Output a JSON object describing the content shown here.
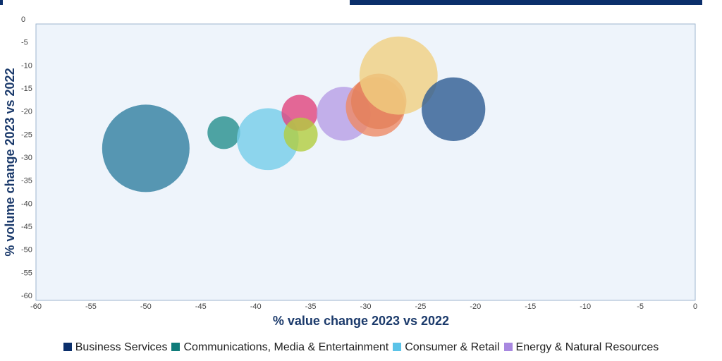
{
  "chart_data": {
    "type": "scatter",
    "subtype": "bubble",
    "xlabel": "% value change 2023 vs 2022",
    "ylabel": "% volume change 2023 vs 2022",
    "xlim": [
      -60,
      0
    ],
    "ylim": [
      -60,
      0
    ],
    "x_ticks": [
      -60,
      -55,
      -50,
      -45,
      -40,
      -35,
      -30,
      -25,
      -20,
      -15,
      -10,
      -5,
      0
    ],
    "y_ticks": [
      0,
      -5,
      -10,
      -15,
      -20,
      -25,
      -30,
      -35,
      -40,
      -45,
      -50,
      -55,
      -60
    ],
    "plot_background": "#eef4fb",
    "legend_position": "bottom",
    "legend": [
      {
        "label": "Business Services",
        "color": "#0b2f6b"
      },
      {
        "label": "Communications, Media & Entertainment",
        "color": "#0f7c7a"
      },
      {
        "label": "Consumer & Retail",
        "color": "#5bc3e8"
      },
      {
        "label": "Energy & Natural Resources",
        "color": "#a888e0"
      }
    ],
    "points": [
      {
        "x": -50,
        "y": -27,
        "size": 1.0,
        "color": "#2f7ea0"
      },
      {
        "x": -42.9,
        "y": -23.6,
        "size": 0.14,
        "color": "#248f8d"
      },
      {
        "x": -38.9,
        "y": -25,
        "size": 0.5,
        "color": "#74cdea"
      },
      {
        "x": -36,
        "y": -19.3,
        "size": 0.17,
        "color": "#e0447d"
      },
      {
        "x": -35.9,
        "y": -24,
        "size": 0.15,
        "color": "#b2cd3f"
      },
      {
        "x": -32,
        "y": -19.5,
        "size": 0.38,
        "color": "#b79ee6"
      },
      {
        "x": -29.1,
        "y": -18,
        "size": 0.46,
        "color": "#ee8a65"
      },
      {
        "x": -28.8,
        "y": -16.8,
        "size": 0.4,
        "color": "#e4805a"
      },
      {
        "x": -27,
        "y": -11.2,
        "size": 0.8,
        "color": "#f0d081"
      },
      {
        "x": -22,
        "y": -18.5,
        "size": 0.53,
        "color": "#2d5b92"
      }
    ]
  }
}
